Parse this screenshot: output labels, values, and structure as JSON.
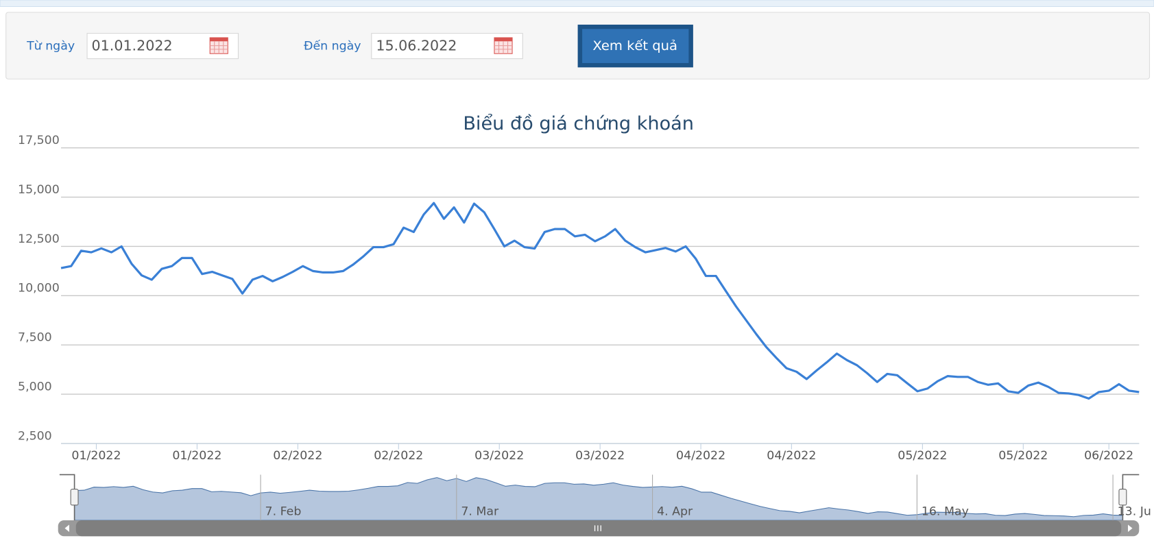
{
  "form": {
    "from_label": "Từ ngày",
    "from_value": "01.01.2022",
    "to_label": "Đến ngày",
    "to_value": "15.06.2022",
    "submit": "Xem kết quả"
  },
  "chart_data": {
    "type": "line",
    "title": "Biểu đồ giá chứng khoán",
    "color": "#3a80d6",
    "values": [
      11400,
      11500,
      12280,
      12200,
      12400,
      12200,
      12500,
      11620,
      11030,
      10810,
      11360,
      11500,
      11910,
      11910,
      11100,
      11210,
      11030,
      10850,
      10110,
      10810,
      11000,
      10730,
      10950,
      11210,
      11500,
      11250,
      11180,
      11180,
      11250,
      11580,
      11990,
      12460,
      12460,
      12610,
      13450,
      13230,
      14120,
      14700,
      13900,
      14480,
      13710,
      14670,
      14230,
      13380,
      12500,
      12790,
      12460,
      12390,
      13230,
      13380,
      13380,
      13010,
      13090,
      12760,
      13010,
      13380,
      12790,
      12460,
      12200,
      12310,
      12420,
      12240,
      12500,
      11870,
      11000,
      11000,
      10220,
      9450,
      8750,
      8050,
      7390,
      6840,
      6320,
      6140,
      5770,
      6210,
      6620,
      7060,
      6730,
      6470,
      6070,
      5620,
      6030,
      5960,
      5550,
      5150,
      5290,
      5660,
      5920,
      5880,
      5880,
      5620,
      5480,
      5550,
      5150,
      5070,
      5440,
      5590,
      5370,
      5070,
      5040,
      4960,
      4780,
      5110,
      5180,
      5510,
      5180,
      5110
    ],
    "xlim": [
      0,
      107
    ],
    "xticks": [
      {
        "value": 3.5,
        "label": "01/2022"
      },
      {
        "value": 13.5,
        "label": "01/2022"
      },
      {
        "value": 23.5,
        "label": "02/2022"
      },
      {
        "value": 33.5,
        "label": "02/2022"
      },
      {
        "value": 43.5,
        "label": "03/2022"
      },
      {
        "value": 53.5,
        "label": "03/2022"
      },
      {
        "value": 63.5,
        "label": "04/2022"
      },
      {
        "value": 72.5,
        "label": "04/2022"
      },
      {
        "value": 85.5,
        "label": "05/2022"
      },
      {
        "value": 95.5,
        "label": "05/2022"
      },
      {
        "value": 104,
        "label": "06/2022"
      }
    ],
    "ylim": [
      2500,
      17500
    ],
    "yticks": [
      {
        "value": 2500,
        "label": "2,500"
      },
      {
        "value": 5000,
        "label": "5,000"
      },
      {
        "value": 7500,
        "label": "7,500"
      },
      {
        "value": 10000,
        "label": "10,000"
      },
      {
        "value": 12500,
        "label": "12,500"
      },
      {
        "value": 15000,
        "label": "15,000"
      },
      {
        "value": 17500,
        "label": "17,500"
      }
    ],
    "grid": true,
    "navigator_ticks": [
      {
        "value": 19,
        "label": "7. Feb"
      },
      {
        "value": 39,
        "label": "7. Mar"
      },
      {
        "value": 59,
        "label": "4. Apr"
      },
      {
        "value": 86,
        "label": "16. May"
      },
      {
        "value": 106,
        "label": "13. Ju"
      }
    ]
  }
}
